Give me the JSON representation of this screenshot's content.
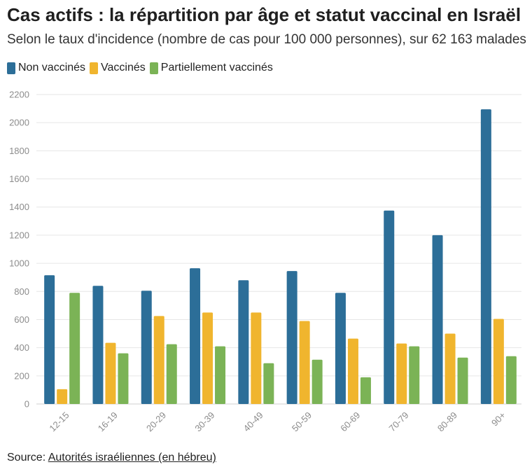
{
  "title": "Cas actifs : la répartition par âge et statut vaccinal en Israël",
  "subtitle": "Selon le taux d'incidence (nombre de cas pour 100 000 personnes), sur 62 163 malades",
  "source": {
    "prefix": "Source: ",
    "link_text": "Autorités israéliennes (en hébreu)"
  },
  "chart_data": {
    "type": "bar",
    "title": "Cas actifs : la répartition par âge et statut vaccinal en Israël",
    "subtitle": "Selon le taux d'incidence (nombre de cas pour 100 000 personnes), sur 62 163 malades",
    "xlabel": "",
    "ylabel": "",
    "categories": [
      "12-15",
      "16-19",
      "20-29",
      "30-39",
      "40-49",
      "50-59",
      "60-69",
      "70-79",
      "80-89",
      "90+"
    ],
    "ylim": [
      0,
      2200
    ],
    "yticks": [
      0,
      200,
      400,
      600,
      800,
      1000,
      1200,
      1400,
      1600,
      1800,
      2000,
      2200
    ],
    "grid": true,
    "legend_position": "top-left",
    "series": [
      {
        "name": "Non vaccinés",
        "color": "#2c6e98",
        "values": [
          915,
          840,
          805,
          965,
          880,
          945,
          790,
          1375,
          1200,
          2095
        ]
      },
      {
        "name": "Vaccinés",
        "color": "#f0b52e",
        "values": [
          105,
          435,
          625,
          650,
          650,
          590,
          465,
          430,
          500,
          605
        ]
      },
      {
        "name": "Partiellement vaccinés",
        "color": "#7bb356",
        "values": [
          790,
          360,
          425,
          410,
          290,
          315,
          190,
          410,
          330,
          340
        ]
      }
    ]
  }
}
